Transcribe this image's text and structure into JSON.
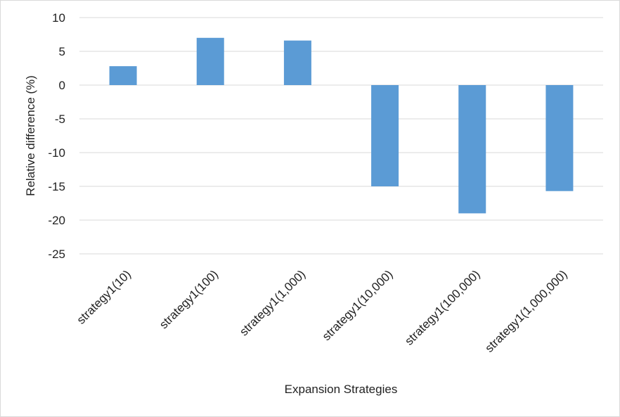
{
  "chart_data": {
    "type": "bar",
    "categories": [
      "strategy1(10)",
      "strategy1(100)",
      "strategy1(1,000)",
      "strategy1(10,000)",
      "strategy1(100,000)",
      "strategy1(1,000,000)"
    ],
    "values": [
      2.8,
      7.0,
      6.6,
      -15.0,
      -19.0,
      -15.7
    ],
    "title": "",
    "xlabel": "Expansion Strategies",
    "ylabel": "Relative difference (%)",
    "ylim": [
      -25,
      10
    ],
    "yticks": [
      10,
      5,
      0,
      -5,
      -10,
      -15,
      -20,
      -25
    ],
    "grid": true,
    "legend": "none",
    "bar_color": "#5b9bd5",
    "grid_color": "#d9d9d9"
  }
}
